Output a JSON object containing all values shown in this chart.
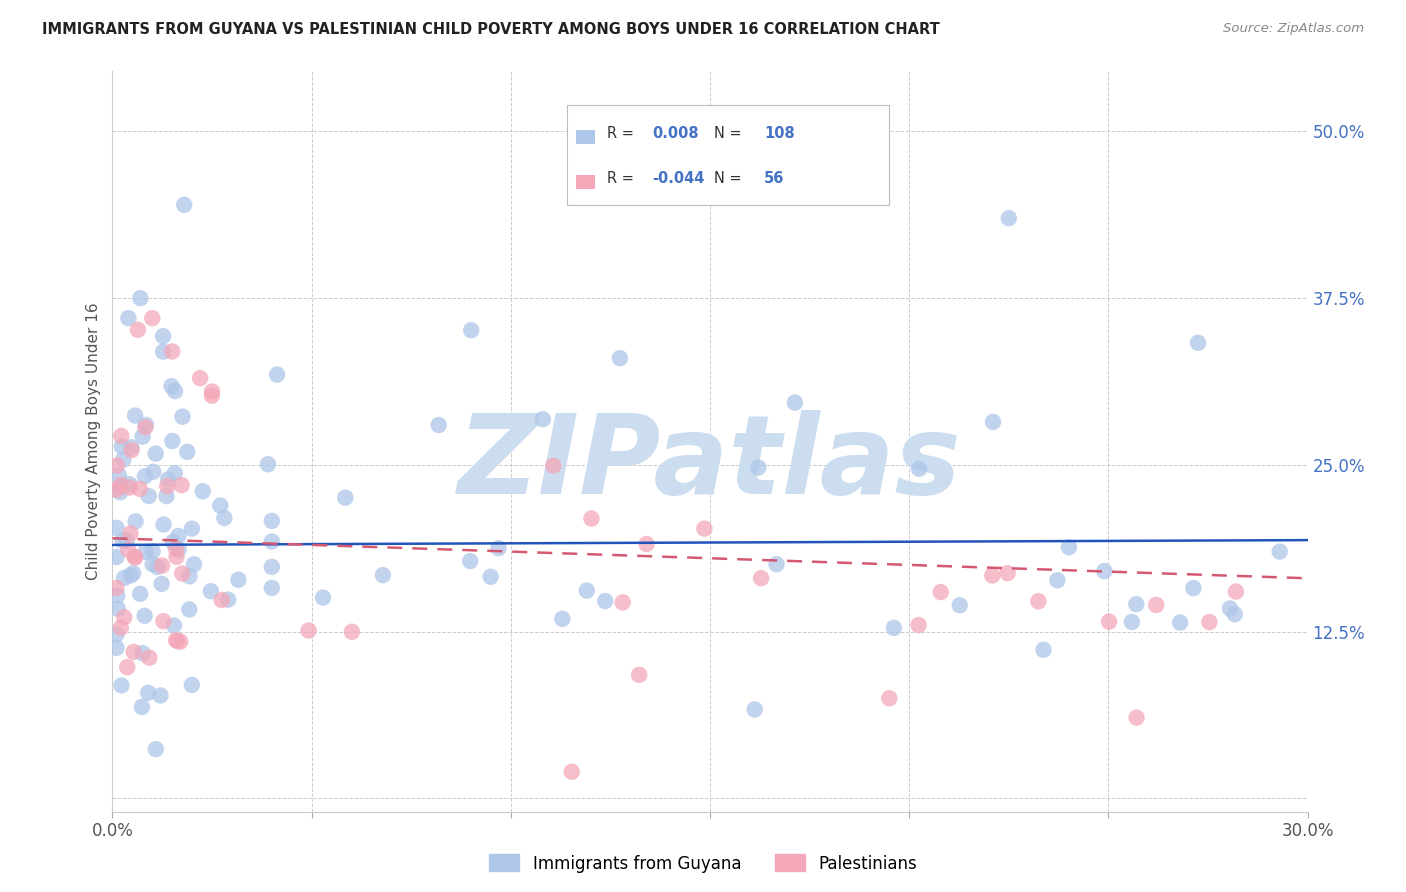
{
  "title": "IMMIGRANTS FROM GUYANA VS PALESTINIAN CHILD POVERTY AMONG BOYS UNDER 16 CORRELATION CHART",
  "source": "Source: ZipAtlas.com",
  "ylabel": "Child Poverty Among Boys Under 16",
  "xlim": [
    0.0,
    0.3
  ],
  "ylim": [
    -0.01,
    0.545
  ],
  "xticks": [
    0.0,
    0.05,
    0.1,
    0.15,
    0.2,
    0.25,
    0.3
  ],
  "xticklabels": [
    "0.0%",
    "",
    "",
    "",
    "",
    "",
    "30.0%"
  ],
  "yticks": [
    0.0,
    0.125,
    0.25,
    0.375,
    0.5
  ],
  "yticklabels": [
    "",
    "12.5%",
    "25.0%",
    "37.5%",
    "50.0%"
  ],
  "blue_R": 0.008,
  "blue_N": 108,
  "pink_R": -0.044,
  "pink_N": 56,
  "blue_color": "#aec6e8",
  "pink_color": "#f4a7b9",
  "blue_line_color": "#2255bb",
  "pink_line_color": "#d45870",
  "watermark": "ZIPatlas",
  "watermark_color": "#ccddf0",
  "legend_label_blue": "Immigrants from Guyana",
  "legend_label_pink": "Palestinians",
  "grid_color": "#cccccc",
  "tick_color": "#4472c4",
  "title_color": "#222222",
  "source_color": "#888888"
}
